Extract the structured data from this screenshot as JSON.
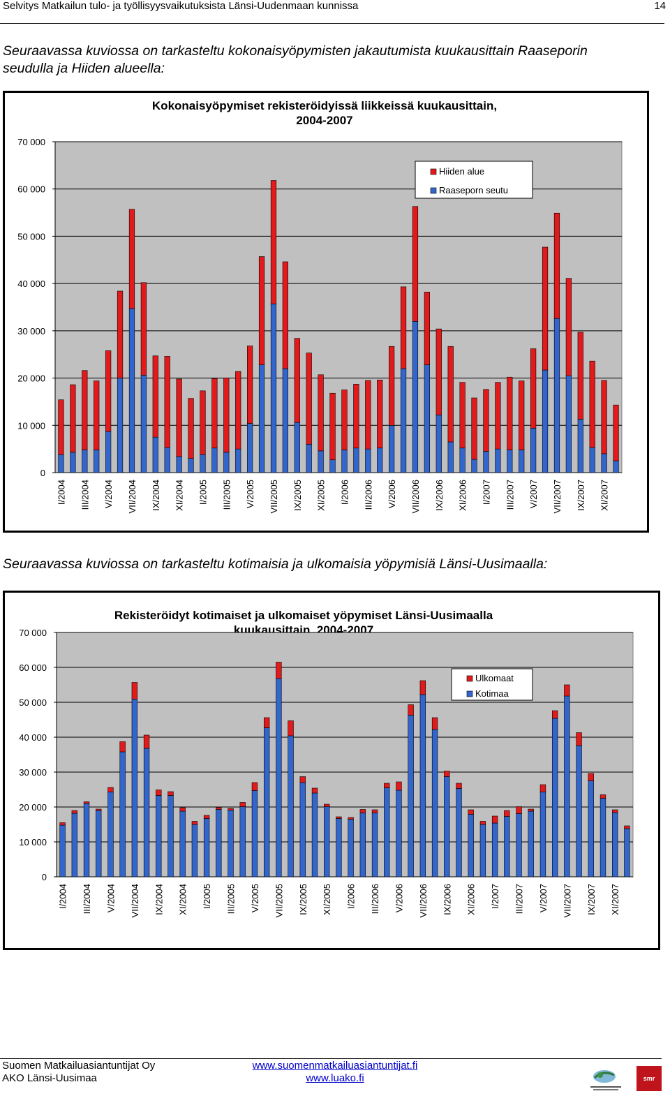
{
  "header": {
    "title": "Selvitys Matkailun tulo- ja työllisyysvaikutuksista Länsi-Uudenmaan kunnissa",
    "page_number": "14"
  },
  "intro1": {
    "line1": "Seuraavassa kuviossa on tarkasteltu kokonaisyöpymisten jakautumista kuukausittain Raaseporin",
    "line2": "seudulla ja Hiiden alueella:"
  },
  "intro2": "Seuraavassa kuviossa on tarkasteltu kotimaisia ja ulkomaisia yöpymisiä Länsi-Uusimaalla:",
  "footer": {
    "company": "Suomen Matkailuasiantuntijat Oy",
    "dept": "AKO Länsi-Uusimaa",
    "link1": "www.suomenmatkailuasiantuntijat.fi",
    "link2": "www.luako.fi",
    "logo_text": "smr"
  },
  "chart_data": [
    {
      "type": "bar",
      "stacked": true,
      "title_line1": "Kokonaisyöpymiset rekisteröidyissä liikkeissä kuukausittain,",
      "title_line2": "2004-2007",
      "ylim": [
        0,
        70000
      ],
      "ytick_values": [
        0,
        10000,
        20000,
        30000,
        40000,
        50000,
        60000,
        70000
      ],
      "ytick_labels": [
        "0",
        "10 000",
        "20 000",
        "30 000",
        "40 000",
        "50 000",
        "60 000",
        "70 000"
      ],
      "grid": true,
      "legend_position": "top-right",
      "plot_bg": "#c0c0c0",
      "x_labels": [
        "I/2004",
        "III/2004",
        "V/2004",
        "VII/2004",
        "IX/2004",
        "XI/2004",
        "I/2005",
        "III/2005",
        "V/2005",
        "VII/2005",
        "IX/2005",
        "XI/2005",
        "I/2006",
        "III/2006",
        "V/2006",
        "VII/2006",
        "IX/2006",
        "XI/2006",
        "I/2007",
        "III/2007",
        "V/2007",
        "VII/2007",
        "IX/2007",
        "XI/2007"
      ],
      "categories": [
        "I/2004",
        "II/2004",
        "III/2004",
        "IV/2004",
        "V/2004",
        "VI/2004",
        "VII/2004",
        "VIII/2004",
        "IX/2004",
        "X/2004",
        "XI/2004",
        "XII/2004",
        "I/2005",
        "II/2005",
        "III/2005",
        "IV/2005",
        "V/2005",
        "VI/2005",
        "VII/2005",
        "VIII/2005",
        "IX/2005",
        "X/2005",
        "XI/2005",
        "XII/2005",
        "I/2006",
        "II/2006",
        "III/2006",
        "IV/2006",
        "V/2006",
        "VI/2006",
        "VII/2006",
        "VIII/2006",
        "IX/2006",
        "X/2006",
        "XI/2006",
        "XII/2006",
        "I/2007",
        "II/2007",
        "III/2007",
        "IV/2007",
        "V/2007",
        "VI/2007",
        "VII/2007",
        "VIII/2007",
        "IX/2007",
        "X/2007",
        "XI/2007",
        "XII/2007"
      ],
      "series": [
        {
          "name": "Raaseporn seutu",
          "color": "#3366cc",
          "values": [
            3800,
            4300,
            4800,
            4800,
            8700,
            20000,
            34700,
            20600,
            7500,
            5300,
            3400,
            3000,
            3800,
            5200,
            4300,
            5000,
            10400,
            22800,
            35700,
            22000,
            10600,
            6000,
            4600,
            2700,
            4800,
            5200,
            5000,
            5200,
            10000,
            22000,
            32000,
            22800,
            12200,
            6500,
            5200,
            2800,
            4500,
            5000,
            4800,
            4800,
            9400,
            21700,
            32600,
            20500,
            11300,
            5300,
            4000,
            2500
          ]
        },
        {
          "name": "Hiiden alue",
          "color": "#e31a1c",
          "values": [
            11600,
            14300,
            16800,
            14600,
            17100,
            18400,
            21000,
            19600,
            17200,
            19300,
            16400,
            12700,
            13500,
            14700,
            15700,
            16400,
            16400,
            22900,
            26100,
            22600,
            17800,
            19300,
            16100,
            14100,
            12700,
            13500,
            14500,
            14400,
            16700,
            17300,
            24300,
            15400,
            18200,
            20200,
            13900,
            13000,
            13100,
            14100,
            15400,
            14600,
            16800,
            26000,
            22300,
            20600,
            18400,
            18300,
            15500,
            11800
          ]
        }
      ]
    },
    {
      "type": "bar",
      "stacked": true,
      "title_line1": "Rekisteröidyt kotimaiset ja ulkomaiset yöpymiset Länsi-Uusimaalla",
      "title_line2": "kuukausittain, 2004-2007",
      "ylim": [
        0,
        70000
      ],
      "ytick_values": [
        0,
        10000,
        20000,
        30000,
        40000,
        50000,
        60000,
        70000
      ],
      "ytick_labels": [
        "0",
        "10 000",
        "20 000",
        "30 000",
        "40 000",
        "50 000",
        "60 000",
        "70 000"
      ],
      "grid": true,
      "legend_position": "top-right",
      "plot_bg": "#c0c0c0",
      "x_labels": [
        "I/2004",
        "III/2004",
        "V/2004",
        "VII/2004",
        "IX/2004",
        "XI/2004",
        "I/2005",
        "III/2005",
        "V/2005",
        "VII/2005",
        "IX/2005",
        "XI/2005",
        "I/2006",
        "III/2006",
        "V/2006",
        "VII/2006",
        "IX/2006",
        "XI/2006",
        "I/2007",
        "III/2007",
        "V/2007",
        "VII/2007",
        "IX/2007",
        "XI/2007"
      ],
      "categories": [
        "I/2004",
        "II/2004",
        "III/2004",
        "IV/2004",
        "V/2004",
        "VI/2004",
        "VII/2004",
        "VIII/2004",
        "IX/2004",
        "X/2004",
        "XI/2004",
        "XII/2004",
        "I/2005",
        "II/2005",
        "III/2005",
        "IV/2005",
        "V/2005",
        "VI/2005",
        "VII/2005",
        "VIII/2005",
        "IX/2005",
        "X/2005",
        "XI/2005",
        "XII/2005",
        "I/2006",
        "II/2006",
        "III/2006",
        "IV/2006",
        "V/2006",
        "VI/2006",
        "VII/2006",
        "VIII/2006",
        "IX/2006",
        "X/2006",
        "XI/2006",
        "XII/2006",
        "I/2007",
        "II/2007",
        "III/2007",
        "IV/2007",
        "V/2007",
        "VI/2007",
        "VII/2007",
        "VIII/2007",
        "IX/2007",
        "X/2007",
        "XI/2007",
        "XII/2007"
      ],
      "series": [
        {
          "name": "Kotimaa",
          "color": "#3366cc",
          "values": [
            14800,
            18200,
            21000,
            19000,
            24300,
            35800,
            50900,
            36800,
            23300,
            23300,
            18800,
            15000,
            16700,
            19300,
            19100,
            20100,
            24700,
            42700,
            56800,
            40400,
            27000,
            24000,
            20100,
            16700,
            16500,
            18300,
            18300,
            25500,
            24800,
            46300,
            52200,
            42200,
            28700,
            25300,
            17900,
            15000,
            15400,
            17300,
            18100,
            18800,
            24300,
            45400,
            51800,
            37600,
            27500,
            22500,
            18400,
            13800
          ]
        },
        {
          "name": "Ulkomaat",
          "color": "#e31a1c",
          "values": [
            700,
            800,
            500,
            400,
            1300,
            2900,
            4800,
            3800,
            1600,
            1100,
            1000,
            900,
            900,
            600,
            500,
            1200,
            2300,
            2900,
            4700,
            4300,
            1700,
            1400,
            700,
            500,
            500,
            1000,
            900,
            1300,
            2400,
            3000,
            4000,
            3400,
            1600,
            1500,
            1300,
            900,
            2000,
            1700,
            2000,
            600,
            2100,
            2200,
            3200,
            3700,
            2100,
            1000,
            800,
            800
          ]
        }
      ]
    }
  ]
}
